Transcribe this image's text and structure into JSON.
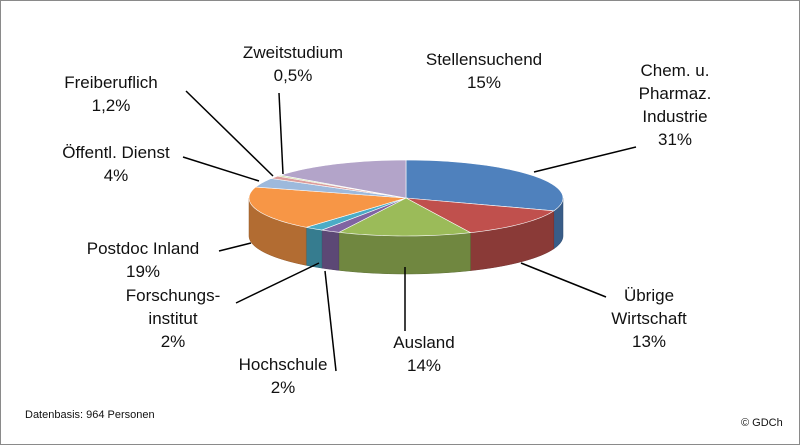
{
  "chart_data": {
    "type": "pie3d",
    "categories": [
      "Chem. u.\nPharmaz.\nIndustrie",
      "Übrige\nWirtschaft",
      "Ausland",
      "Hochschule",
      "Forschungs-\ninstitut",
      "Postdoc Inland",
      "Öffentl. Dienst",
      "Freiberuflich",
      "Zweitstudium",
      "Stellensuchend"
    ],
    "values": [
      31,
      13,
      14,
      2,
      2,
      19,
      4,
      1.2,
      0.5,
      15
    ],
    "value_labels": [
      "31%",
      "13%",
      "14%",
      "2%",
      "2%",
      "19%",
      "4%",
      "1,2%",
      "0,5%",
      "15%"
    ],
    "colors": [
      "#4f81bd",
      "#c0504d",
      "#9bbb59",
      "#8064a2",
      "#4bacc6",
      "#f79646",
      "#9db9dc",
      "#dc9d9b",
      "#c9dca0",
      "#b3a4c9"
    ],
    "source_note": "Datenbasis: 964 Personen",
    "copyright": "© GDCh"
  }
}
